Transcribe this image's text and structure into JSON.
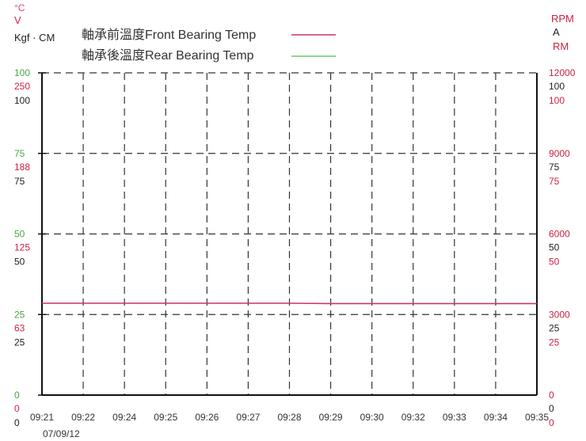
{
  "chart_data": {
    "type": "line",
    "left_axis_units": [
      {
        "text": "°C",
        "color": "#e0407a"
      },
      {
        "text": "V",
        "color": "#cc2244"
      },
      {
        "text": "Kgf · CM",
        "color": "#222222"
      }
    ],
    "right_axis_units": [
      {
        "text": "RPM",
        "color": "#cc2244"
      },
      {
        "text": "A",
        "color": "#222222"
      },
      {
        "text": "RM",
        "color": "#cc2244"
      }
    ],
    "left_ticks": {
      "temp": [
        "100",
        "75",
        "50",
        "25",
        "0"
      ],
      "volt": [
        "250",
        "188",
        "125",
        "63",
        "0"
      ],
      "torque": [
        "100",
        "75",
        "50",
        "25",
        "0"
      ]
    },
    "right_ticks": {
      "rpm": [
        "12000",
        "9000",
        "6000",
        "3000",
        "0"
      ],
      "amp": [
        "100",
        "75",
        "50",
        "25",
        "0"
      ],
      "rm": [
        "100",
        "75",
        "50",
        "25",
        "0"
      ]
    },
    "tick_colors": {
      "temp": "#44aa44",
      "volt": "#cc2244",
      "torque": "#222222",
      "rpm": "#cc2244",
      "amp": "#222222",
      "rm": "#cc2244"
    },
    "x_labels": [
      "09:21",
      "09:22",
      "09:24",
      "09:25",
      "09:26",
      "09:27",
      "09:28",
      "09:29",
      "09:30",
      "09:32",
      "09:33",
      "09:34",
      "09:35"
    ],
    "x_date": "07/09/12",
    "ylim": [
      0,
      100
    ],
    "grid": true,
    "legend_position": "top",
    "series": [
      {
        "name": "軸承前溫度Front Bearing Temp",
        "color": "#cc3366",
        "values": [
          28.5,
          28.5,
          28.5,
          28.5,
          28.5,
          28.5,
          28.5,
          28.4,
          28.4,
          28.4,
          28.4,
          28.4,
          28.4
        ]
      },
      {
        "name": "軸承後溫度Rear Bearing Temp",
        "color": "#66cc66",
        "values": []
      }
    ]
  }
}
